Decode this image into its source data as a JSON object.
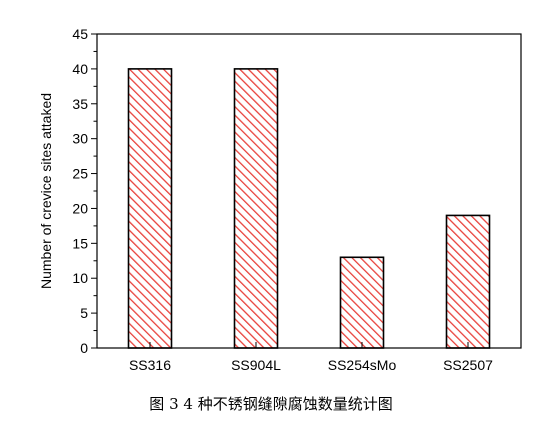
{
  "figure": {
    "caption": "图 3 4 种不锈钢缝隙腐蚀数量统计图"
  },
  "colors": {
    "bar_stroke": "#000000",
    "hatch": "#e8413b",
    "axis": "#000000"
  },
  "chart_data": {
    "type": "bar",
    "categories": [
      "SS316",
      "SS904L",
      "SS254sMo",
      "SS2507"
    ],
    "values": [
      40,
      40,
      13,
      19
    ],
    "title": "",
    "xlabel": "",
    "ylabel": "Number of crevice sites attaked",
    "ylim": [
      0,
      45
    ],
    "yticks": [
      0,
      5,
      10,
      15,
      20,
      25,
      30,
      35,
      40,
      45
    ],
    "grid": false,
    "bar_fill": "diagonal-hatch"
  }
}
